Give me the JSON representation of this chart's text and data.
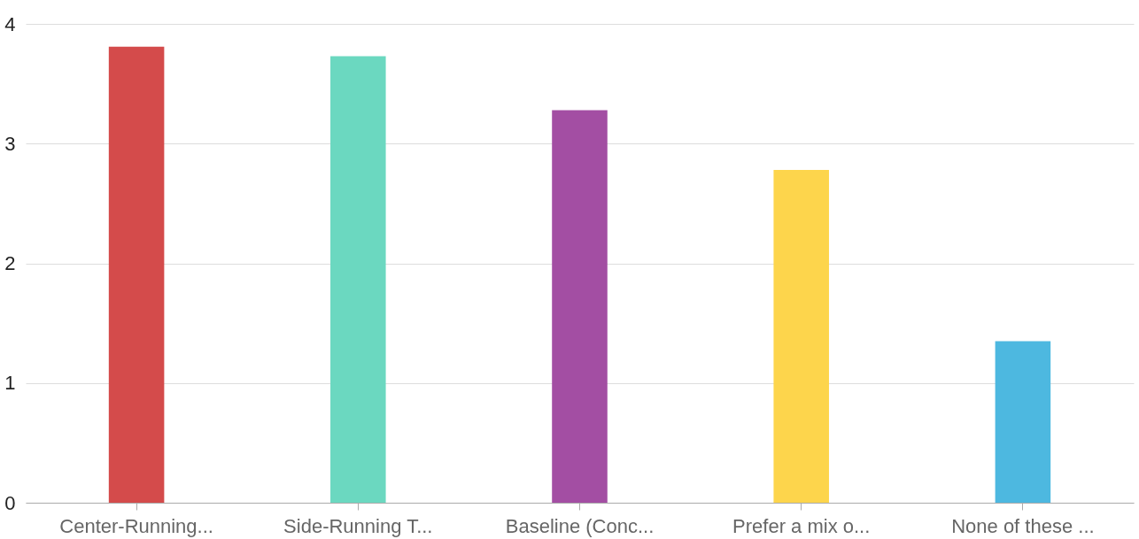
{
  "chart_data": {
    "type": "bar",
    "categories": [
      "Center-Running...",
      "Side-Running T...",
      "Baseline (Conc...",
      "Prefer a mix o...",
      "None of these ..."
    ],
    "values": [
      3.81,
      3.73,
      3.28,
      2.78,
      1.35
    ],
    "colors": [
      "#d44b4b",
      "#6bd8c0",
      "#a34ea3",
      "#fdd54c",
      "#4db8e0"
    ],
    "ylim": [
      0,
      4
    ],
    "yticks": [
      0,
      1,
      2,
      3,
      4
    ],
    "grid": "y"
  }
}
